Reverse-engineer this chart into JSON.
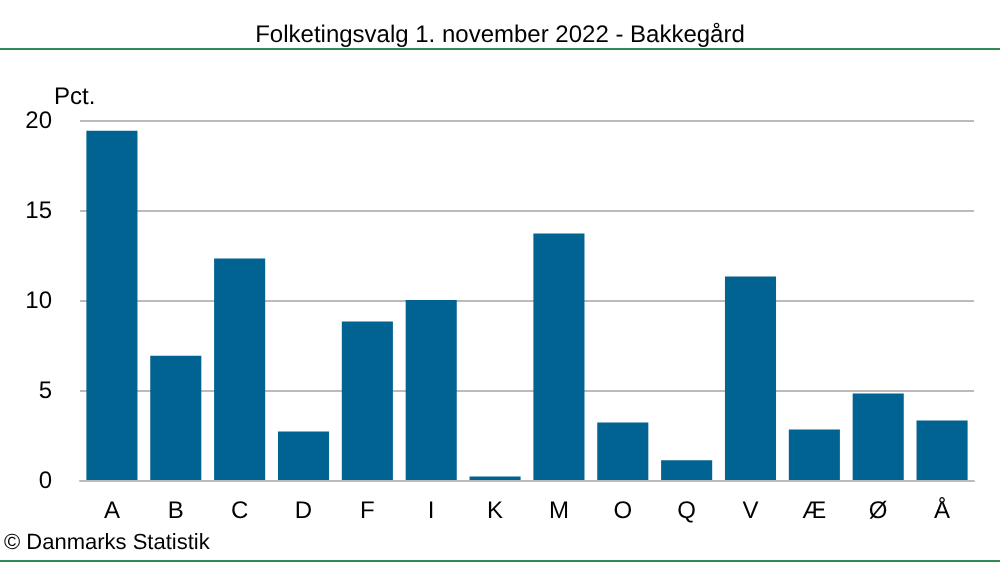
{
  "chart_data": {
    "type": "bar",
    "title": "Folketingsvalg 1. november 2022 - Bakkegård",
    "ylabel": "Pct.",
    "annotations": [
      "© Danmarks Statistik"
    ],
    "categories": [
      "A",
      "B",
      "C",
      "D",
      "F",
      "I",
      "K",
      "M",
      "O",
      "Q",
      "V",
      "Æ",
      "Ø",
      "Å"
    ],
    "values": [
      19.4,
      6.9,
      12.3,
      2.7,
      8.8,
      10.0,
      0.2,
      13.7,
      3.2,
      1.1,
      11.3,
      2.8,
      4.8,
      3.3
    ],
    "color": "#006391",
    "ylim": [
      0,
      20
    ],
    "yticks": [
      0,
      5,
      10,
      15,
      20
    ],
    "grid": "y"
  }
}
